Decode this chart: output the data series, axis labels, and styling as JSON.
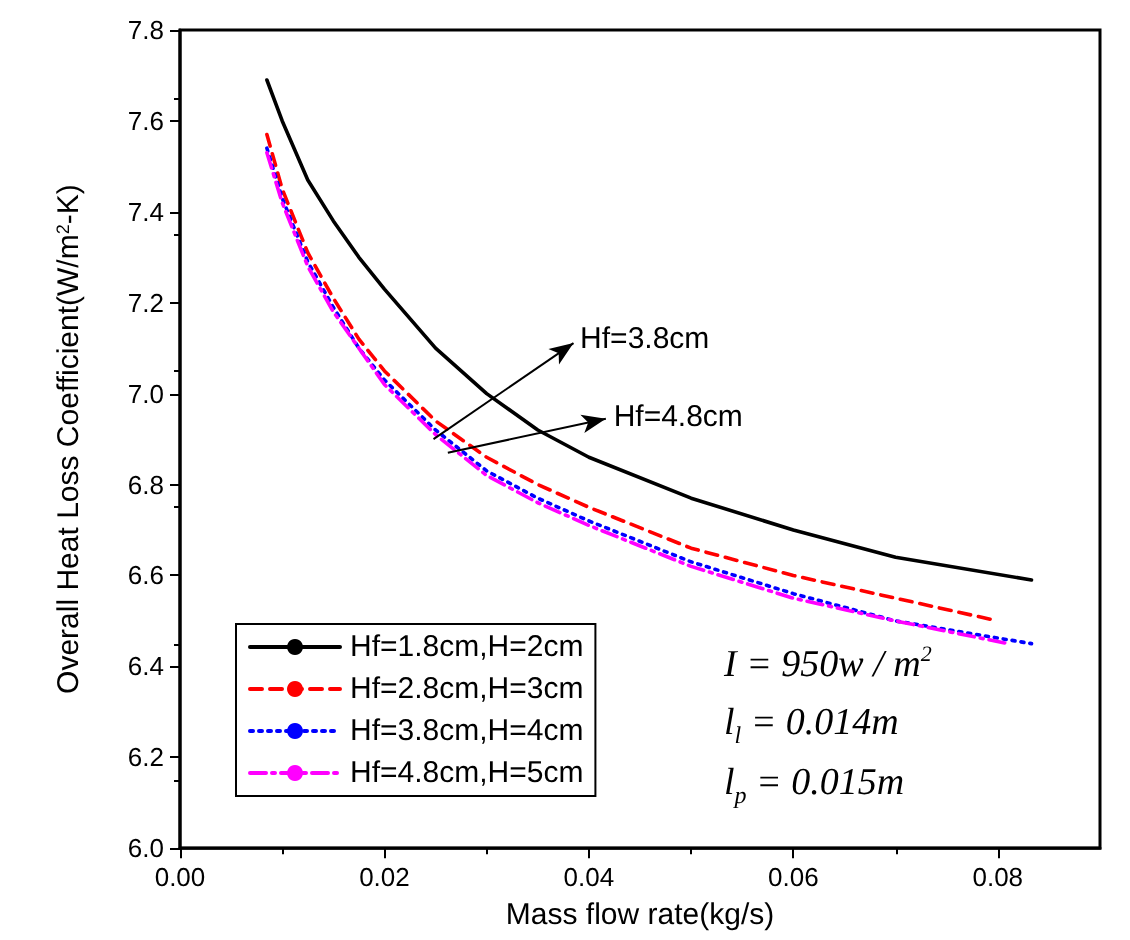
{
  "chart_data": {
    "type": "line",
    "xlabel": "Mass flow rate(kg/s)",
    "ylabel": "Overall Heat Loss Coefficient(W/m$^{2}$-K)",
    "xlim": [
      0,
      0.09
    ],
    "xticks": [
      {
        "value": 0,
        "label": "0.00"
      },
      {
        "value": 0.02,
        "label": "0.02"
      },
      {
        "value": 0.04,
        "label": "0.04"
      },
      {
        "value": 0.06,
        "label": "0.06"
      },
      {
        "value": 0.08,
        "label": "0.08"
      }
    ],
    "ylim": [
      6.0,
      7.8
    ],
    "yticks": [
      {
        "value": 6.0,
        "label": "6.0"
      },
      {
        "value": 6.2,
        "label": "6.2"
      },
      {
        "value": 6.4,
        "label": "6.4"
      },
      {
        "value": 6.6,
        "label": "6.6"
      },
      {
        "value": 6.8,
        "label": "6.8"
      },
      {
        "value": 7.0,
        "label": "7.0"
      },
      {
        "value": 7.2,
        "label": "7.2"
      },
      {
        "value": 7.4,
        "label": "7.4"
      },
      {
        "value": 7.6,
        "label": "7.6"
      },
      {
        "value": 7.8,
        "label": "7.8"
      }
    ],
    "x": [
      0.0085,
      0.01,
      0.0125,
      0.015,
      0.0175,
      0.02,
      0.025,
      0.03,
      0.035,
      0.04,
      0.05,
      0.06,
      0.07,
      0.0833
    ],
    "legend": "bottom left",
    "grid": false,
    "marker": "none",
    "series": [
      {
        "name": "Hf=1.8cm,H=2cm",
        "color": "#000000",
        "line_style": "solid",
        "values": [
          7.69,
          7.6,
          7.47,
          7.38,
          7.3,
          7.23,
          7.1,
          7.0,
          6.92,
          6.86,
          6.77,
          6.7,
          6.64,
          6.59
        ]
      },
      {
        "name": "Hf=2.8cm,H=3cm",
        "color": "#ff0000",
        "line_style": "dashed",
        "x": [
          0.0085,
          0.01,
          0.0125,
          0.015,
          0.0175,
          0.02,
          0.025,
          0.03,
          0.035,
          0.04,
          0.05,
          0.06,
          0.07,
          0.08
        ],
        "values": [
          7.57,
          7.45,
          7.31,
          7.21,
          7.12,
          7.05,
          6.94,
          6.86,
          6.8,
          6.75,
          6.66,
          6.6,
          6.55,
          6.5
        ]
      },
      {
        "name": "Hf=3.8cm,H=4cm",
        "color": "#0000ff",
        "line_style": "dotted",
        "values": [
          7.54,
          7.43,
          7.29,
          7.19,
          7.1,
          7.03,
          6.92,
          6.83,
          6.77,
          6.72,
          6.63,
          6.56,
          6.5,
          6.45
        ]
      },
      {
        "name": "Hf=4.8cm,H=5cm",
        "color": "#ff00ff",
        "line_style": "dashdot",
        "x": [
          0.0085,
          0.01,
          0.0125,
          0.015,
          0.0175,
          0.02,
          0.025,
          0.03,
          0.035,
          0.04,
          0.05,
          0.06,
          0.07,
          0.081
        ],
        "values": [
          7.53,
          7.42,
          7.28,
          7.18,
          7.1,
          7.02,
          6.91,
          6.82,
          6.76,
          6.71,
          6.62,
          6.55,
          6.5,
          6.45
        ]
      }
    ],
    "annotations": [
      {
        "text": "Hf=3.8cm",
        "x": 0.0248,
        "y": 6.9
      },
      {
        "text": "Hf=4.8cm",
        "x": 0.0262,
        "y": 6.87
      },
      "I = 950w / m$^{2}$",
      "l$_{l}$ = 0.014m",
      "l$_{p}$ = 0.015m"
    ]
  }
}
